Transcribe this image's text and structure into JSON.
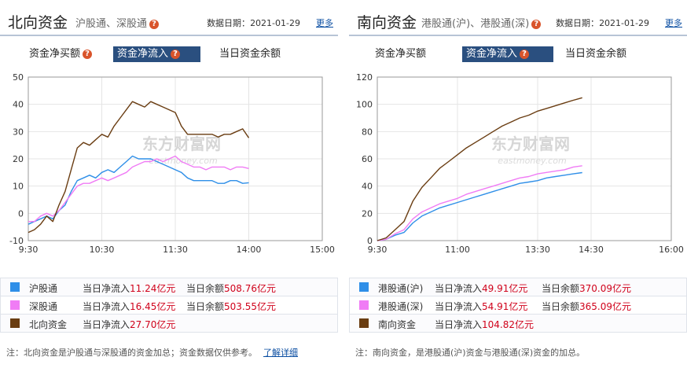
{
  "left": {
    "title": "北向资金",
    "subtitle": "沪股通、深股通",
    "date_label": "数据日期：",
    "date": "2021-01-29",
    "more": "更多",
    "tabs": [
      "资金净买额",
      "资金净流入",
      "当日资金余额"
    ],
    "active_tab": 1,
    "watermark": "东方财富网",
    "watermark_sub": "eastmoney.com",
    "legend": [
      {
        "name": "沪股通",
        "flow_label": "当日净流入",
        "flow": "11.24",
        "unit": "亿元",
        "bal_label": "当日余额",
        "bal": "508.76",
        "color": "#2f8fe8"
      },
      {
        "name": "深股通",
        "flow_label": "当日净流入",
        "flow": "16.45",
        "unit": "亿元",
        "bal_label": "当日余额",
        "bal": "503.55",
        "color": "#f07cf5"
      },
      {
        "name": "北向资金",
        "flow_label": "当日净流入",
        "flow": "27.70",
        "unit": "亿元",
        "bal_label": "",
        "bal": "",
        "color": "#6a3d12"
      }
    ],
    "note": "注：北向资金是沪股通与深股通的资金加总；资金数据仅供参考。",
    "note_link": "了解详细"
  },
  "right": {
    "title": "南向资金",
    "subtitle": "港股通(沪)、港股通(深)",
    "date_label": "数据日期：",
    "date": "2021-01-29",
    "more": "更多",
    "tabs": [
      "资金净买额",
      "资金净流入",
      "当日资金余额"
    ],
    "active_tab": 1,
    "watermark": "东方财富网",
    "watermark_sub": "eastmoney.com",
    "legend": [
      {
        "name": "港股通(沪)",
        "flow_label": "当日净流入",
        "flow": "49.91",
        "unit": "亿元",
        "bal_label": "当日余额",
        "bal": "370.09",
        "color": "#2f8fe8"
      },
      {
        "name": "港股通(深)",
        "flow_label": "当日净流入",
        "flow": "54.91",
        "unit": "亿元",
        "bal_label": "当日余额",
        "bal": "365.09",
        "color": "#f07cf5"
      },
      {
        "name": "南向资金",
        "flow_label": "当日净流入",
        "flow": "104.82",
        "unit": "亿元",
        "bal_label": "",
        "bal": "",
        "color": "#6a3d12"
      }
    ],
    "note": "注：南向资金，是港股通(沪)资金与港股通(深)资金的加总。",
    "note_link": ""
  },
  "chart_data": [
    {
      "type": "line",
      "title": "北向资金",
      "x_ticks": [
        "9:30",
        "10:30",
        "11:30",
        "14:00",
        "15:00"
      ],
      "x_tick_min": [
        0,
        60,
        120,
        180,
        240
      ],
      "ylim": [
        -10,
        50
      ],
      "y_ticks": [
        -10,
        0,
        10,
        20,
        30,
        40,
        50
      ],
      "grid": true,
      "series": [
        {
          "name": "沪股通",
          "color": "#2f8fe8",
          "x": [
            0,
            5,
            10,
            15,
            20,
            25,
            30,
            35,
            40,
            45,
            50,
            55,
            60,
            65,
            70,
            75,
            80,
            85,
            90,
            95,
            100,
            105,
            110,
            115,
            120,
            125,
            130,
            135,
            140,
            145,
            150,
            155,
            160,
            165,
            170,
            175,
            180
          ],
          "y": [
            -4,
            -3,
            -2,
            -1,
            -2,
            1,
            3,
            8,
            12,
            13,
            14,
            13,
            15,
            16,
            15,
            17,
            19,
            21,
            20,
            20,
            20,
            19,
            18,
            17,
            16,
            15,
            13,
            12,
            12,
            12,
            12,
            11,
            11,
            12,
            12,
            11,
            11.24
          ]
        },
        {
          "name": "深股通",
          "color": "#f07cf5",
          "x": [
            0,
            5,
            10,
            15,
            20,
            25,
            30,
            35,
            40,
            45,
            50,
            55,
            60,
            65,
            70,
            75,
            80,
            85,
            90,
            95,
            100,
            105,
            110,
            115,
            120,
            125,
            130,
            135,
            140,
            145,
            150,
            155,
            160,
            165,
            170,
            175,
            180
          ],
          "y": [
            -3,
            -3,
            -1,
            0,
            -1,
            1,
            4,
            7,
            10,
            11,
            11,
            12,
            13,
            12,
            13,
            14,
            15,
            17,
            18,
            19,
            19,
            20,
            19,
            20,
            21,
            19,
            18,
            17,
            17,
            16,
            17,
            17,
            17,
            16,
            17,
            17,
            16.45
          ]
        },
        {
          "name": "北向资金",
          "color": "#6a3d12",
          "x": [
            0,
            5,
            10,
            15,
            20,
            25,
            30,
            35,
            40,
            45,
            50,
            55,
            60,
            65,
            70,
            75,
            80,
            85,
            90,
            95,
            100,
            105,
            110,
            115,
            120,
            125,
            130,
            135,
            140,
            145,
            150,
            155,
            160,
            165,
            170,
            175,
            180
          ],
          "y": [
            -7,
            -6,
            -4,
            -1,
            -3,
            3,
            8,
            16,
            24,
            26,
            25,
            27,
            29,
            28,
            32,
            35,
            38,
            41,
            40,
            39,
            41,
            40,
            39,
            38,
            37,
            32,
            29,
            29,
            29,
            29,
            29,
            28,
            29,
            29,
            30,
            31,
            27.7
          ]
        }
      ]
    },
    {
      "type": "line",
      "title": "南向资金",
      "x_ticks": [
        "9:30",
        "11:00",
        "13:30",
        "14:30",
        "16:00"
      ],
      "x_tick_min": [
        0,
        90,
        180,
        240,
        330
      ],
      "ylim": [
        0,
        120
      ],
      "y_ticks": [
        0,
        20,
        40,
        60,
        80,
        100,
        120
      ],
      "grid": true,
      "series": [
        {
          "name": "港股通(沪)",
          "color": "#2f8fe8",
          "x": [
            0,
            10,
            20,
            30,
            40,
            50,
            60,
            70,
            80,
            90,
            100,
            110,
            120,
            130,
            140,
            150,
            160,
            170,
            180,
            190,
            200,
            210,
            220,
            230
          ],
          "y": [
            0,
            1,
            4,
            6,
            13,
            18,
            21,
            24,
            26,
            28,
            30,
            32,
            34,
            36,
            38,
            40,
            42,
            43,
            44,
            46,
            47,
            48,
            49,
            49.91
          ]
        },
        {
          "name": "港股通(深)",
          "color": "#f07cf5",
          "x": [
            0,
            10,
            20,
            30,
            40,
            50,
            60,
            70,
            80,
            90,
            100,
            110,
            120,
            130,
            140,
            150,
            160,
            170,
            180,
            190,
            200,
            210,
            220,
            230
          ],
          "y": [
            0,
            1,
            5,
            8,
            16,
            21,
            24,
            27,
            29,
            31,
            34,
            36,
            38,
            40,
            42,
            44,
            46,
            47,
            49,
            50,
            51,
            52,
            54,
            54.91
          ]
        },
        {
          "name": "南向资金",
          "color": "#6a3d12",
          "x": [
            0,
            10,
            20,
            30,
            40,
            50,
            60,
            70,
            80,
            90,
            100,
            110,
            120,
            130,
            140,
            150,
            160,
            170,
            180,
            190,
            200,
            210,
            220,
            230
          ],
          "y": [
            0,
            2,
            8,
            14,
            29,
            39,
            46,
            53,
            58,
            63,
            68,
            72,
            76,
            80,
            84,
            87,
            90,
            92,
            95,
            97,
            99,
            101,
            103,
            104.82
          ]
        }
      ]
    }
  ]
}
